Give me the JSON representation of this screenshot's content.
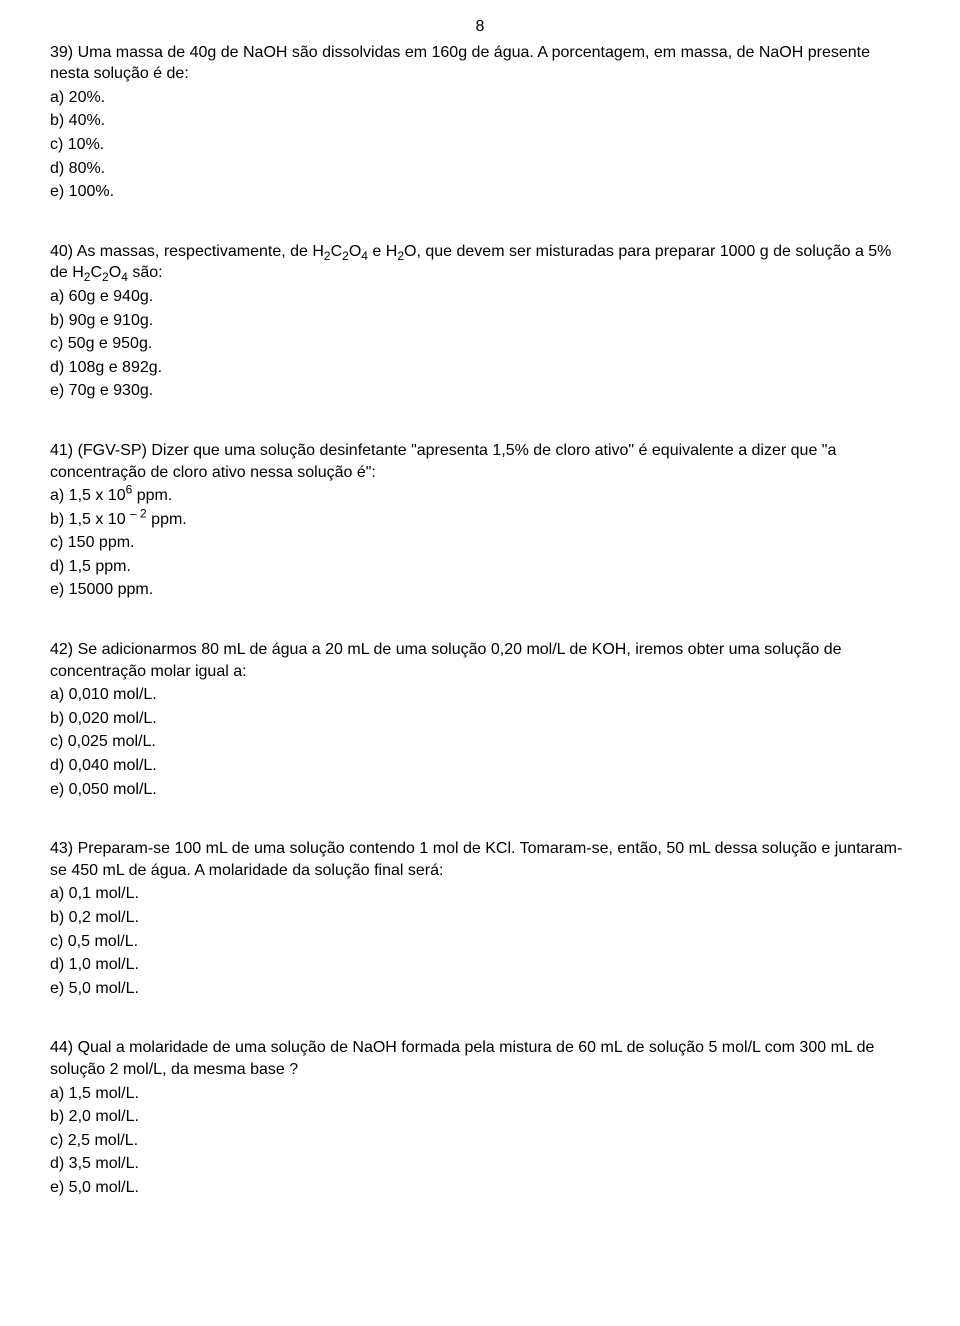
{
  "page_number": "8",
  "questions": [
    {
      "number": "39",
      "text_html": "Uma massa de 40g de NaOH são dissolvidas em 160g de água. A porcentagem, em massa, de NaOH presente nesta solução é de:",
      "options": [
        "a) 20%.",
        "b) 40%.",
        "c) 10%.",
        "d) 80%.",
        "e) 100%."
      ]
    },
    {
      "number": "40",
      "text_html": "As massas, respectivamente, de H<sub>2</sub>C<sub>2</sub>O<sub>4</sub> e H<sub>2</sub>O, que devem ser misturadas para preparar 1000 g de solução a 5% de H<sub>2</sub>C<sub>2</sub>O<sub>4</sub>  são:",
      "options": [
        "a) 60g e 940g.",
        "b) 90g e 910g.",
        "c) 50g e 950g.",
        "d) 108g e 892g.",
        "e) 70g e 930g."
      ]
    },
    {
      "number": "41",
      "text_html": "(FGV-SP) Dizer que uma solução desinfetante \"apresenta 1,5% de cloro ativo\" é equivalente a dizer que \"a concentração de cloro ativo nessa solução é\":",
      "options_html": [
        "a) 1,5 x 10<sup>6</sup> ppm.",
        "b) 1,5 x 10 <sup>– 2</sup> ppm.",
        "c) 150 ppm.",
        "d) 1,5 ppm.",
        "e) 15000 ppm."
      ]
    },
    {
      "number": "42",
      "text_html": "Se adicionarmos 80 mL de água a 20 mL de uma solução 0,20 mol/L de KOH, iremos obter uma solução de concentração molar igual a:",
      "options": [
        "a) 0,010 mol/L.",
        "b) 0,020 mol/L.",
        "c) 0,025 mol/L.",
        "d) 0,040 mol/L.",
        "e) 0,050 mol/L."
      ]
    },
    {
      "number": "43",
      "text_html": "Preparam-se 100 mL de uma solução contendo 1 mol de KCl. Tomaram-se, então, 50 mL dessa solução e juntaram-se 450 mL de água. A molaridade da solução final será:",
      "options": [
        "a) 0,1 mol/L.",
        "b) 0,2 mol/L.",
        "c) 0,5 mol/L.",
        "d) 1,0 mol/L.",
        "e) 5,0 mol/L."
      ]
    },
    {
      "number": "44",
      "text_html": "Qual a molaridade de uma solução de NaOH formada pela mistura de 60 mL de solução 5 mol/L com 300 mL de solução 2 mol/L, da mesma base ?",
      "options": [
        "a) 1,5 mol/L.",
        "b) 2,0 mol/L.",
        "c) 2,5 mol/L.",
        "d) 3,5 mol/L.",
        "e) 5,0 mol/L."
      ]
    }
  ]
}
